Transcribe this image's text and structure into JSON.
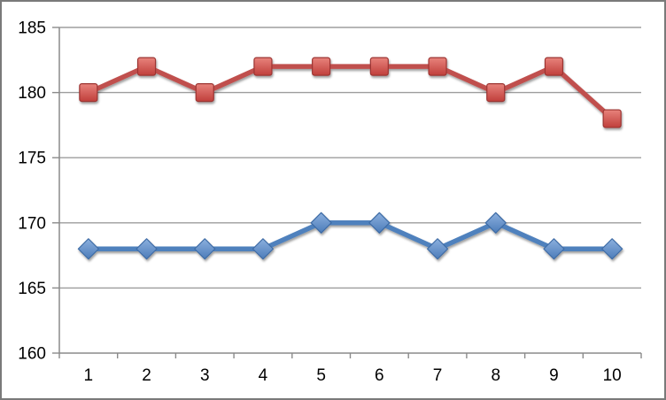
{
  "chart_data": {
    "type": "line",
    "title": "",
    "xlabel": "",
    "ylabel": "",
    "categories": [
      "1",
      "2",
      "3",
      "4",
      "5",
      "6",
      "7",
      "8",
      "9",
      "10"
    ],
    "series": [
      {
        "name": "red-squares",
        "marker": "square",
        "line_color": "#c0504d",
        "marker_fill_top": "#e8837c",
        "marker_fill_bottom": "#c03f3b",
        "marker_border": "#9c3432",
        "values": [
          180,
          182,
          180,
          182,
          182,
          182,
          182,
          180,
          182,
          178
        ]
      },
      {
        "name": "blue-diamonds",
        "marker": "diamond",
        "line_color": "#4f81bd",
        "marker_fill_top": "#8cb0de",
        "marker_fill_bottom": "#4c7cb9",
        "marker_border": "#3c6ba5",
        "values": [
          168,
          168,
          168,
          168,
          170,
          170,
          168,
          170,
          168,
          168
        ]
      }
    ],
    "ylim": [
      160,
      185
    ],
    "yticks": [
      160,
      165,
      170,
      175,
      180,
      185
    ],
    "grid": true,
    "legend": "none",
    "style": {
      "background": "#ffffff",
      "frame_border_color": "#7a7a7a",
      "gridline_color": "#9d9d9d",
      "axis_color": "#8a8a8a",
      "text_color": "#000000"
    }
  }
}
